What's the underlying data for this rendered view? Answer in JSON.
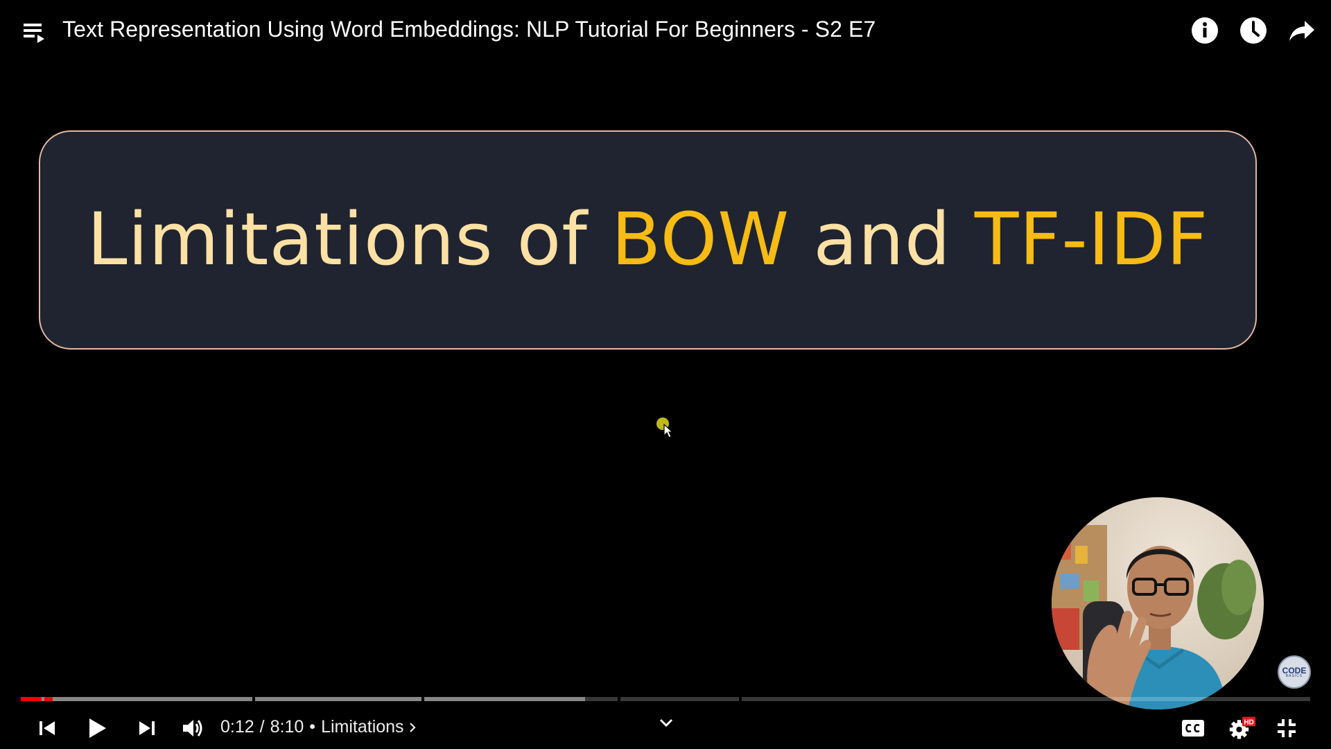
{
  "header": {
    "title": "Text Representation Using Word Embeddings: NLP Tutorial For Beginners - S2 E7",
    "playlist_icon": "playlist-icon",
    "actions": [
      {
        "name": "info",
        "icon": "info-icon"
      },
      {
        "name": "watch-later",
        "icon": "clock-icon"
      },
      {
        "name": "share",
        "icon": "share-icon"
      }
    ]
  },
  "slide": {
    "heading_parts": [
      "Limitations of ",
      "BOW",
      " and ",
      "TF-IDF"
    ],
    "text_color": "#fde1a4",
    "accent_color": "#f6bb14",
    "card_color": "#1f2430",
    "border_color": "#e7b7a2"
  },
  "watermark": {
    "line1": "CODE",
    "line2": "BASICS"
  },
  "progress": {
    "played_fraction": 0.0245,
    "buffered_fraction": 0.437,
    "color": "#ff0000"
  },
  "controls": {
    "current_time": "0:12",
    "separator": "/",
    "duration": "8:10",
    "bullet": "•",
    "chapter": "Limitations",
    "icons": [
      "previous-icon",
      "play-icon",
      "next-icon",
      "volume-icon",
      "chevron-down-icon",
      "captions-icon",
      "settings-icon",
      "fullscreen-exit-icon"
    ],
    "settings_badge": "HD"
  }
}
